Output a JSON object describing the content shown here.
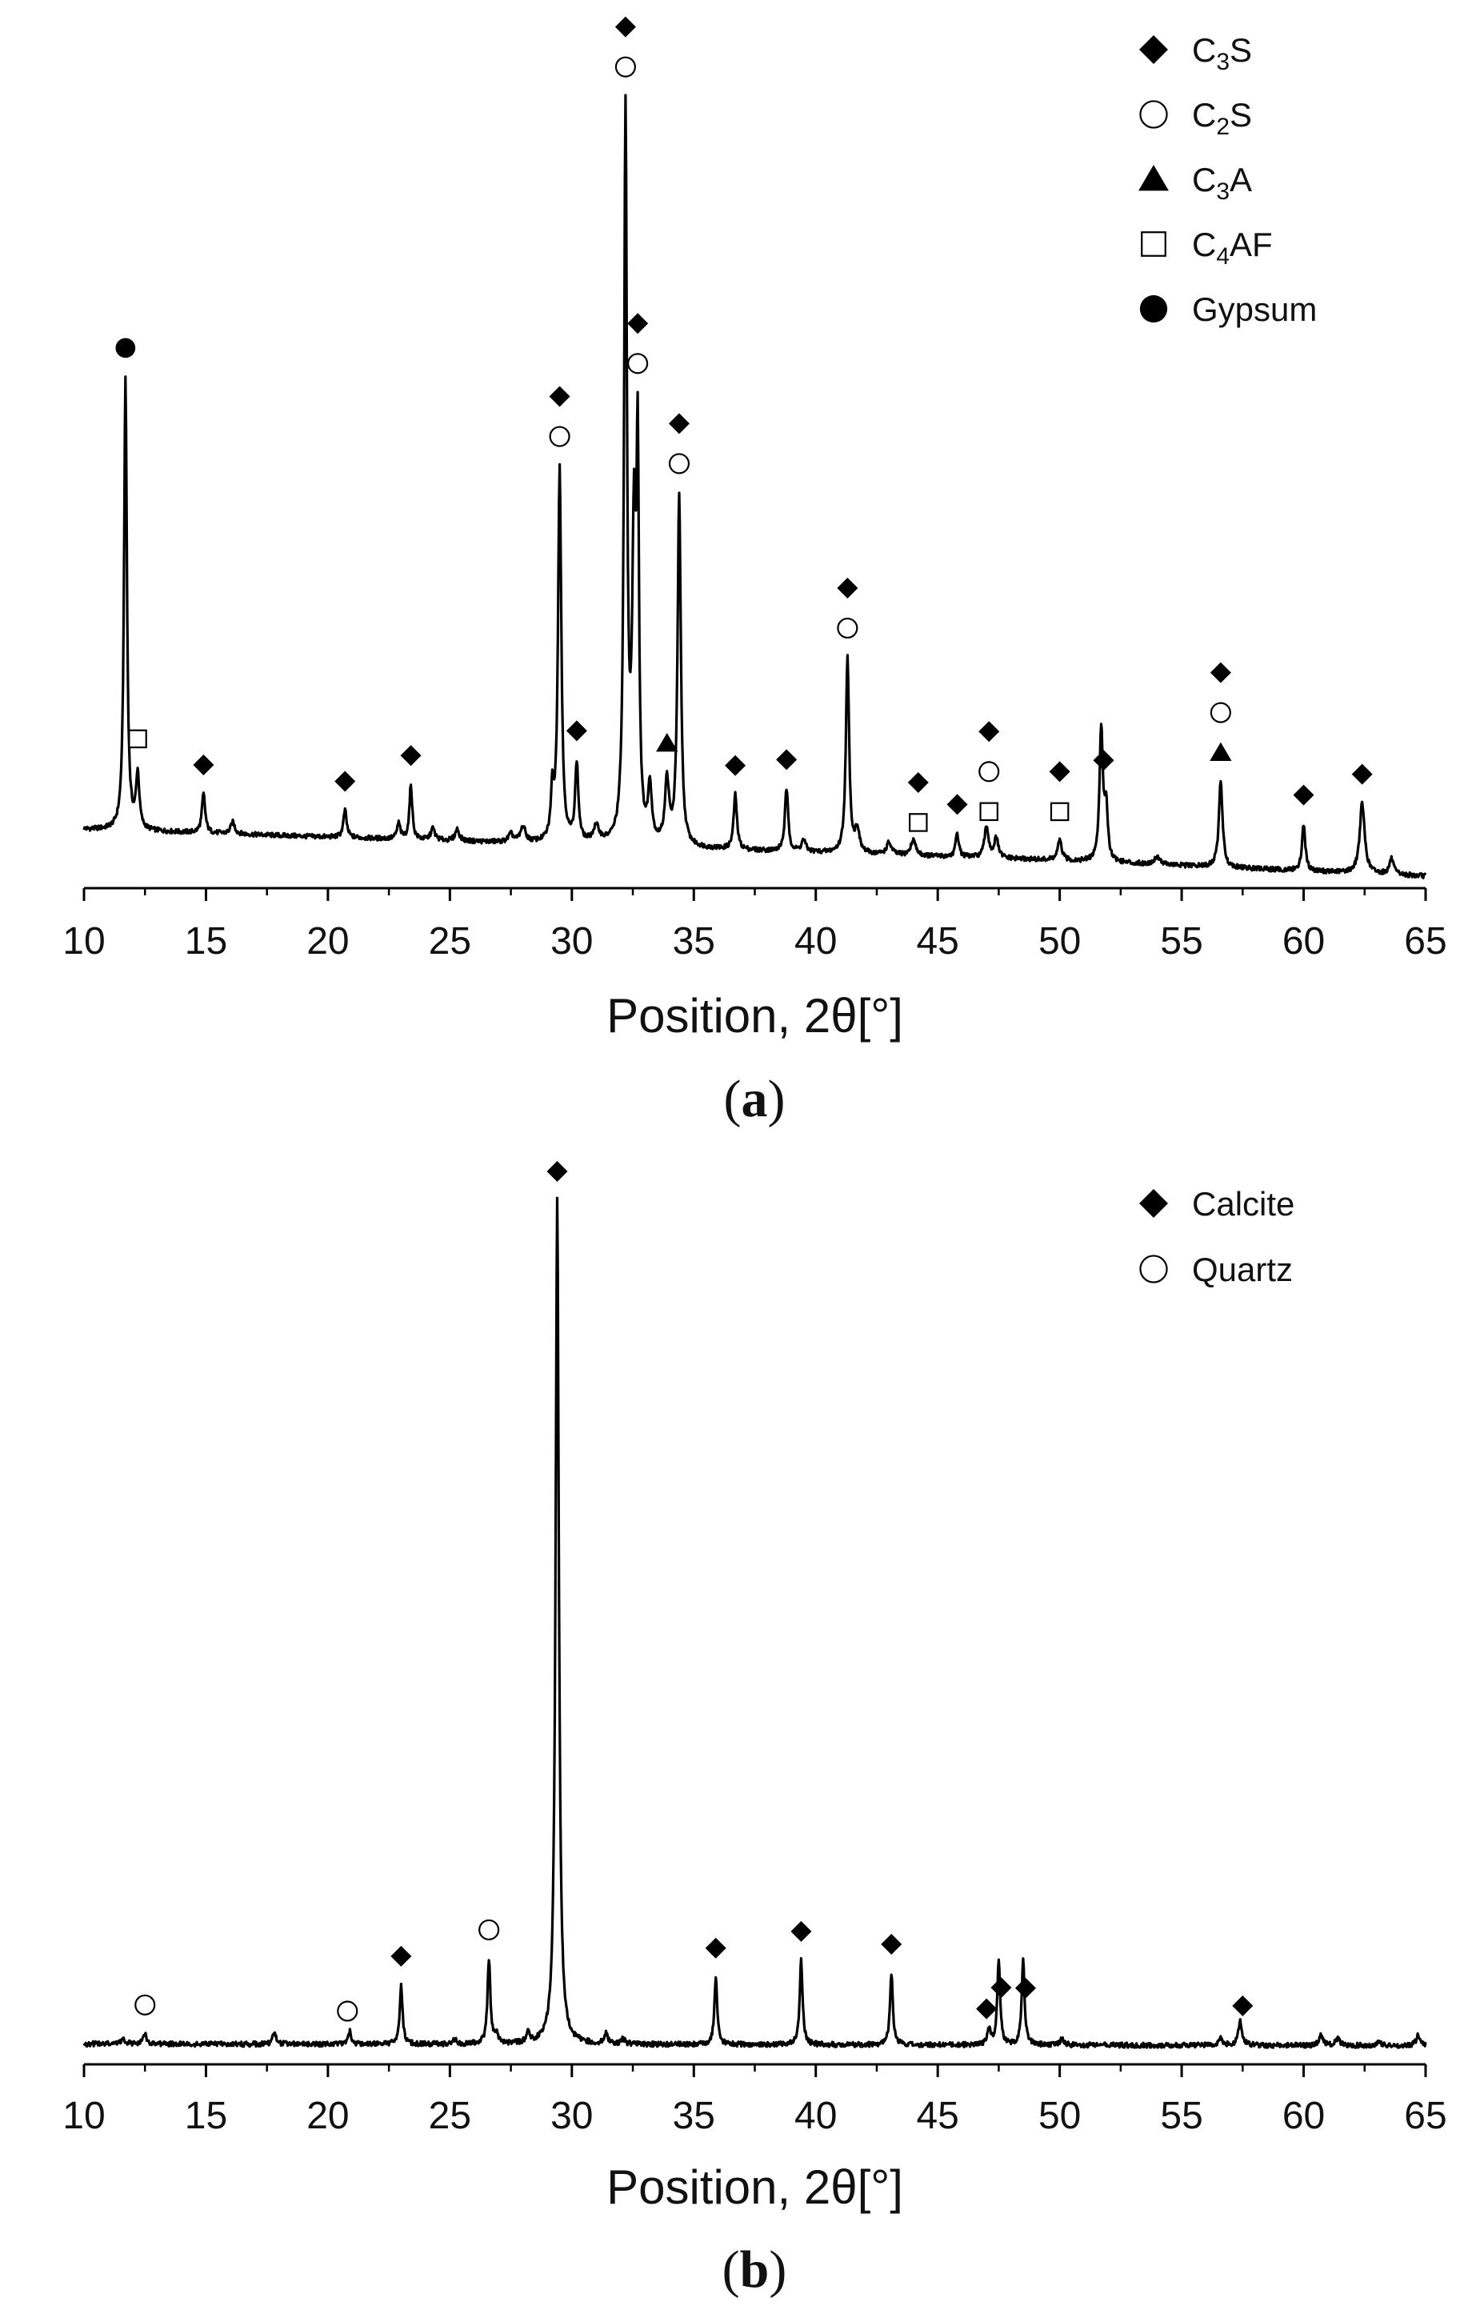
{
  "chart_data": [
    {
      "type": "line",
      "panel_label": "(a)",
      "panel_label_parts": [
        "(",
        "a",
        ")"
      ],
      "xlabel": "Position, 2θ[°]",
      "xlim": [
        10,
        65
      ],
      "xticks": [
        10,
        15,
        20,
        25,
        30,
        35,
        40,
        45,
        50,
        55,
        60,
        65
      ],
      "grid": false,
      "legend_position": "top-right",
      "legend": [
        {
          "marker": "diamond-filled",
          "text": "C",
          "sub": "3",
          "after": "S"
        },
        {
          "marker": "circle-open",
          "text": "C",
          "sub": "2",
          "after": "S"
        },
        {
          "marker": "triangle-filled",
          "text": "C",
          "sub": "3",
          "after": "A"
        },
        {
          "marker": "square-open",
          "text": "C",
          "sub": "4",
          "after": "AF"
        },
        {
          "marker": "circle-filled",
          "text": "Gypsum",
          "sub": "",
          "after": ""
        }
      ],
      "series": [
        {
          "values_note": "relative intensity (no y-axis printed)",
          "baseline": [
            [
              10,
              0.06
            ],
            [
              20,
              0.05
            ],
            [
              30,
              0.04
            ],
            [
              40,
              0.03
            ],
            [
              50,
              0.02
            ],
            [
              65,
              0.0
            ]
          ],
          "peaks": [
            {
              "x": 11.7,
              "h": 0.58,
              "w": 0.07
            },
            {
              "x": 12.2,
              "h": 0.07,
              "w": 0.08
            },
            {
              "x": 14.9,
              "h": 0.05,
              "w": 0.08
            },
            {
              "x": 16.1,
              "h": 0.015,
              "w": 0.1
            },
            {
              "x": 20.7,
              "h": 0.035,
              "w": 0.08
            },
            {
              "x": 22.9,
              "h": 0.02,
              "w": 0.08
            },
            {
              "x": 23.4,
              "h": 0.07,
              "w": 0.07
            },
            {
              "x": 24.3,
              "h": 0.015,
              "w": 0.1
            },
            {
              "x": 25.3,
              "h": 0.015,
              "w": 0.1
            },
            {
              "x": 27.5,
              "h": 0.01,
              "w": 0.12
            },
            {
              "x": 28.0,
              "h": 0.02,
              "w": 0.12
            },
            {
              "x": 29.2,
              "h": 0.06,
              "w": 0.07
            },
            {
              "x": 29.5,
              "h": 0.48,
              "w": 0.08
            },
            {
              "x": 30.2,
              "h": 0.1,
              "w": 0.08
            },
            {
              "x": 31.0,
              "h": 0.02,
              "w": 0.15
            },
            {
              "x": 32.2,
              "h": 0.93,
              "w": 0.07
            },
            {
              "x": 32.55,
              "h": 0.38,
              "w": 0.09
            },
            {
              "x": 32.7,
              "h": 0.46,
              "w": 0.06
            },
            {
              "x": 33.2,
              "h": 0.07,
              "w": 0.09
            },
            {
              "x": 33.9,
              "h": 0.08,
              "w": 0.1
            },
            {
              "x": 34.4,
              "h": 0.45,
              "w": 0.08
            },
            {
              "x": 36.7,
              "h": 0.07,
              "w": 0.08
            },
            {
              "x": 38.8,
              "h": 0.08,
              "w": 0.08
            },
            {
              "x": 39.5,
              "h": 0.015,
              "w": 0.1
            },
            {
              "x": 41.3,
              "h": 0.25,
              "w": 0.08
            },
            {
              "x": 41.7,
              "h": 0.03,
              "w": 0.1
            },
            {
              "x": 43.0,
              "h": 0.015,
              "w": 0.12
            },
            {
              "x": 44.0,
              "h": 0.02,
              "w": 0.12
            },
            {
              "x": 45.8,
              "h": 0.03,
              "w": 0.08
            },
            {
              "x": 47.0,
              "h": 0.04,
              "w": 0.1
            },
            {
              "x": 47.4,
              "h": 0.025,
              "w": 0.1
            },
            {
              "x": 50.0,
              "h": 0.025,
              "w": 0.1
            },
            {
              "x": 51.7,
              "h": 0.17,
              "w": 0.08
            },
            {
              "x": 51.9,
              "h": 0.07,
              "w": 0.08
            },
            {
              "x": 54.0,
              "h": 0.01,
              "w": 0.15
            },
            {
              "x": 56.6,
              "h": 0.11,
              "w": 0.09
            },
            {
              "x": 60.0,
              "h": 0.06,
              "w": 0.08
            },
            {
              "x": 62.4,
              "h": 0.09,
              "w": 0.12
            },
            {
              "x": 63.6,
              "h": 0.02,
              "w": 0.1
            }
          ]
        }
      ],
      "annotations": [
        {
          "x": 11.7,
          "markers": [
            "circle-filled"
          ]
        },
        {
          "x": 12.2,
          "markers": [
            "square-open"
          ]
        },
        {
          "x": 14.9,
          "markers": [
            "diamond-filled"
          ]
        },
        {
          "x": 20.7,
          "markers": [
            "diamond-filled"
          ]
        },
        {
          "x": 23.4,
          "markers": [
            "diamond-filled"
          ]
        },
        {
          "x": 29.5,
          "markers": [
            "circle-open",
            "diamond-filled"
          ]
        },
        {
          "x": 30.2,
          "markers": [
            "diamond-filled"
          ]
        },
        {
          "x": 32.2,
          "markers": [
            "circle-open",
            "diamond-filled"
          ]
        },
        {
          "x": 32.7,
          "markers": [
            "circle-open",
            "diamond-filled"
          ]
        },
        {
          "x": 33.9,
          "markers": [
            "triangle-filled"
          ]
        },
        {
          "x": 34.4,
          "markers": [
            "circle-open",
            "diamond-filled"
          ]
        },
        {
          "x": 36.7,
          "markers": [
            "diamond-filled"
          ]
        },
        {
          "x": 38.8,
          "markers": [
            "diamond-filled"
          ]
        },
        {
          "x": 41.3,
          "markers": [
            "circle-open",
            "diamond-filled"
          ]
        },
        {
          "x": 44.2,
          "markers": [
            "square-open",
            "diamond-filled"
          ]
        },
        {
          "x": 45.8,
          "markers": [
            "diamond-filled"
          ]
        },
        {
          "x": 47.1,
          "markers": [
            "square-open",
            "circle-open",
            "diamond-filled"
          ]
        },
        {
          "x": 50.0,
          "markers": [
            "square-open",
            "diamond-filled"
          ]
        },
        {
          "x": 51.8,
          "markers": [
            "diamond-filled"
          ]
        },
        {
          "x": 56.6,
          "markers": [
            "triangle-filled",
            "circle-open",
            "diamond-filled"
          ]
        },
        {
          "x": 60.0,
          "markers": [
            "diamond-filled"
          ]
        },
        {
          "x": 62.4,
          "markers": [
            "diamond-filled"
          ]
        }
      ]
    },
    {
      "type": "line",
      "panel_label": "(b)",
      "panel_label_parts": [
        "(",
        "b",
        ")"
      ],
      "xlabel": "Position, 2θ[°]",
      "xlim": [
        10,
        65
      ],
      "xticks": [
        10,
        15,
        20,
        25,
        30,
        35,
        40,
        45,
        50,
        55,
        60,
        65
      ],
      "grid": false,
      "legend_position": "top-right",
      "legend": [
        {
          "marker": "diamond-filled",
          "text": "Calcite",
          "sub": "",
          "after": ""
        },
        {
          "marker": "circle-open",
          "text": "Quartz",
          "sub": "",
          "after": ""
        }
      ],
      "series": [
        {
          "values_note": "relative intensity (no y-axis printed)",
          "baseline": [
            [
              10,
              0.01
            ],
            [
              65,
              0.008
            ]
          ],
          "peaks": [
            {
              "x": 11.6,
              "h": 0.006,
              "w": 0.1
            },
            {
              "x": 12.5,
              "h": 0.012,
              "w": 0.08
            },
            {
              "x": 17.8,
              "h": 0.014,
              "w": 0.08
            },
            {
              "x": 20.9,
              "h": 0.015,
              "w": 0.07
            },
            {
              "x": 23.0,
              "h": 0.07,
              "w": 0.07
            },
            {
              "x": 25.2,
              "h": 0.005,
              "w": 0.1
            },
            {
              "x": 26.6,
              "h": 0.1,
              "w": 0.07
            },
            {
              "x": 26.9,
              "h": 0.01,
              "w": 0.08
            },
            {
              "x": 28.2,
              "h": 0.012,
              "w": 0.08
            },
            {
              "x": 29.4,
              "h": 1.0,
              "w": 0.08
            },
            {
              "x": 31.4,
              "h": 0.012,
              "w": 0.08
            },
            {
              "x": 32.1,
              "h": 0.006,
              "w": 0.1
            },
            {
              "x": 35.9,
              "h": 0.08,
              "w": 0.07
            },
            {
              "x": 39.4,
              "h": 0.1,
              "w": 0.07
            },
            {
              "x": 43.1,
              "h": 0.085,
              "w": 0.07
            },
            {
              "x": 47.1,
              "h": 0.02,
              "w": 0.07
            },
            {
              "x": 47.5,
              "h": 0.1,
              "w": 0.07
            },
            {
              "x": 48.5,
              "h": 0.1,
              "w": 0.07
            },
            {
              "x": 50.1,
              "h": 0.008,
              "w": 0.08
            },
            {
              "x": 56.6,
              "h": 0.008,
              "w": 0.1
            },
            {
              "x": 57.4,
              "h": 0.028,
              "w": 0.09
            },
            {
              "x": 60.7,
              "h": 0.012,
              "w": 0.1
            },
            {
              "x": 61.4,
              "h": 0.008,
              "w": 0.1
            },
            {
              "x": 63.1,
              "h": 0.005,
              "w": 0.1
            },
            {
              "x": 64.7,
              "h": 0.012,
              "w": 0.1
            }
          ]
        }
      ],
      "annotations": [
        {
          "x": 12.5,
          "markers": [
            "circle-open"
          ]
        },
        {
          "x": 20.8,
          "markers": [
            "circle-open"
          ]
        },
        {
          "x": 23.0,
          "markers": [
            "diamond-filled"
          ]
        },
        {
          "x": 26.6,
          "markers": [
            "circle-open"
          ]
        },
        {
          "x": 29.4,
          "markers": [
            "diamond-filled"
          ]
        },
        {
          "x": 35.9,
          "markers": [
            "diamond-filled"
          ]
        },
        {
          "x": 39.4,
          "markers": [
            "diamond-filled"
          ]
        },
        {
          "x": 43.1,
          "markers": [
            "diamond-filled"
          ]
        },
        {
          "x": 47.0,
          "markers": [
            "diamond-filled"
          ]
        },
        {
          "x": 47.6,
          "markers": [
            "diamond-filled"
          ]
        },
        {
          "x": 48.6,
          "markers": [
            "diamond-filled"
          ]
        },
        {
          "x": 57.5,
          "markers": [
            "diamond-filled"
          ]
        }
      ]
    }
  ]
}
